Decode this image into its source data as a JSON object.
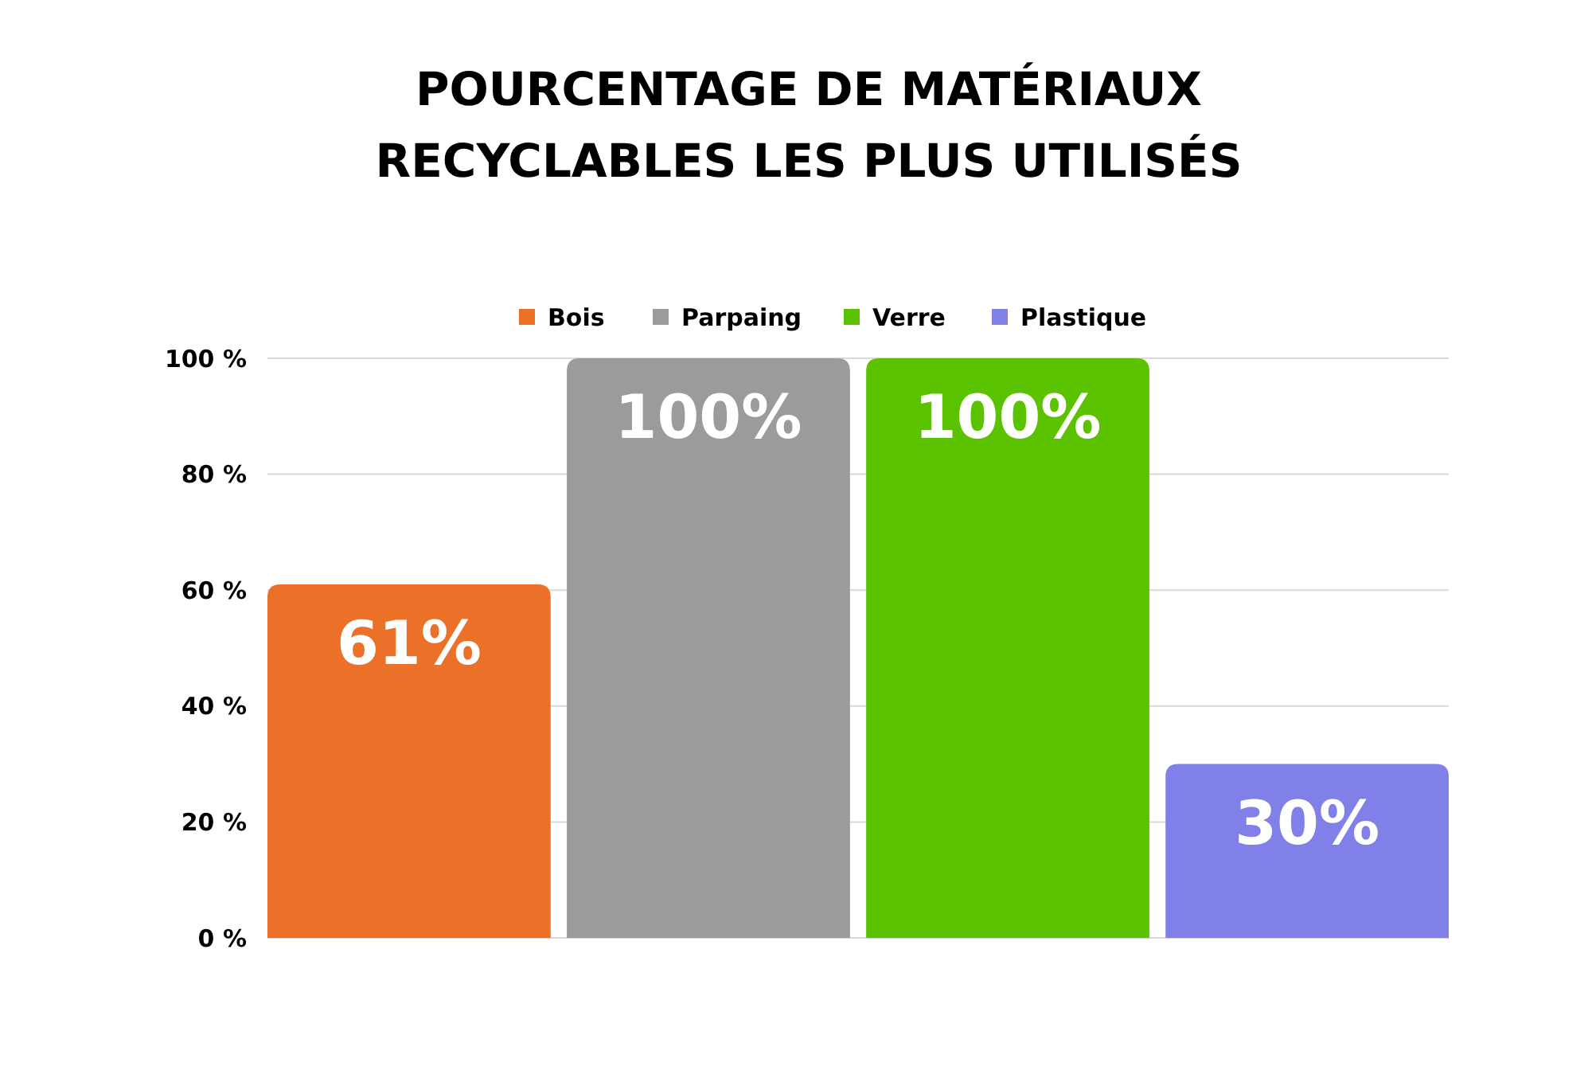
{
  "chart_data": {
    "type": "bar",
    "title": "POURCENTAGE DE MATÉRIAUX RECYCLABLES LES PLUS UTILISÉS",
    "categories": [
      null
    ],
    "series": [
      {
        "name": "Bois",
        "color": "#eb7028",
        "values": [
          61
        ],
        "value_labels": [
          "61%"
        ]
      },
      {
        "name": "Parpaing",
        "color": "#9b9b9b",
        "values": [
          100
        ],
        "value_labels": [
          "100%"
        ]
      },
      {
        "name": "Verre",
        "color": "#5bc200",
        "values": [
          100
        ],
        "value_labels": [
          "100%"
        ]
      },
      {
        "name": "Plastique",
        "color": "#8080e8",
        "values": [
          30
        ],
        "value_labels": [
          "30%"
        ]
      }
    ],
    "ylim": [
      0,
      100
    ],
    "yticks": [
      {
        "value": 0,
        "label": "0 %"
      },
      {
        "value": 20,
        "label": "20 %"
      },
      {
        "value": 40,
        "label": "40 %"
      },
      {
        "value": 60,
        "label": "60 %"
      },
      {
        "value": 80,
        "label": "80 %"
      },
      {
        "value": 100,
        "label": "100 %"
      }
    ],
    "grid": "y",
    "legend": "top",
    "tick_labels": "y"
  }
}
